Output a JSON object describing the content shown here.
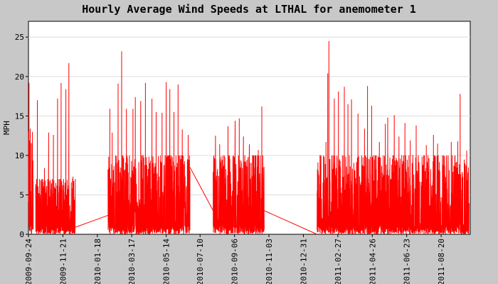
{
  "chart_data": {
    "type": "line",
    "title": "Hourly Average Wind Speeds at LTHAL for anemometer 1",
    "xlabel": "",
    "ylabel": "MPH",
    "xlim": [
      "2009-09-24",
      "2011-10-08"
    ],
    "ylim": [
      0,
      27
    ],
    "grid": true,
    "x_ticks": [
      "2009-09-24",
      "2009-11-21",
      "2010-01-18",
      "2010-03-17",
      "2010-05-14",
      "2010-07-10",
      "2010-09-06",
      "2010-11-03",
      "2010-12-31",
      "2011-02-27",
      "2011-04-26",
      "2011-06-23",
      "2011-08-20"
    ],
    "y_ticks": [
      0,
      5,
      10,
      15,
      20,
      25
    ],
    "colors": {
      "series": "#ff0000",
      "background": "#c8c8c8",
      "plot_area": "#ffffff",
      "grid": "#dddddd"
    },
    "series": [
      {
        "name": "",
        "segments": [
          {
            "start": "2009-09-24",
            "end": "2009-10-02",
            "typical_max": 13,
            "peaks": [
              [
                "2009-09-25",
                19.2
              ],
              [
                "2009-09-27",
                13.4
              ],
              [
                "2009-10-01",
                6.5
              ]
            ]
          },
          {
            "start": "2009-10-06",
            "end": "2009-12-12",
            "typical_max": 7,
            "peaks": [
              [
                "2009-10-09",
                17.0
              ],
              [
                "2009-10-21",
                8.4
              ],
              [
                "2009-10-28",
                12.9
              ],
              [
                "2009-11-05",
                12.6
              ],
              [
                "2009-11-12",
                17.2
              ],
              [
                "2009-11-18",
                19.2
              ],
              [
                "2009-11-26",
                18.4
              ],
              [
                "2009-12-01",
                21.7
              ],
              [
                "2009-12-08",
                7.3
              ]
            ]
          },
          {
            "start": "2010-02-05",
            "end": "2010-06-23",
            "typical_max": 10,
            "peaks": [
              [
                "2010-02-08",
                15.9
              ],
              [
                "2010-02-12",
                12.9
              ],
              [
                "2010-02-22",
                19.1
              ],
              [
                "2010-02-28",
                23.2
              ],
              [
                "2010-03-08",
                15.9
              ],
              [
                "2010-03-19",
                15.9
              ],
              [
                "2010-03-23",
                17.4
              ],
              [
                "2010-04-01",
                16.9
              ],
              [
                "2010-04-09",
                19.2
              ],
              [
                "2010-04-20",
                17.2
              ],
              [
                "2010-04-27",
                15.5
              ],
              [
                "2010-05-07",
                15.4
              ],
              [
                "2010-05-14",
                19.3
              ],
              [
                "2010-05-20",
                18.4
              ],
              [
                "2010-05-27",
                15.5
              ],
              [
                "2010-06-03",
                19.0
              ],
              [
                "2010-06-10",
                13.3
              ],
              [
                "2010-06-20",
                12.6
              ]
            ]
          },
          {
            "start": "2010-08-01",
            "end": "2010-10-26",
            "typical_max": 10,
            "peaks": [
              [
                "2010-08-05",
                12.5
              ],
              [
                "2010-08-12",
                11.4
              ],
              [
                "2010-08-26",
                13.7
              ],
              [
                "2010-09-07",
                14.4
              ],
              [
                "2010-09-14",
                14.7
              ],
              [
                "2010-09-21",
                12.4
              ],
              [
                "2010-10-01",
                11.4
              ],
              [
                "2010-10-16",
                10.7
              ],
              [
                "2010-10-22",
                16.2
              ]
            ]
          },
          {
            "start": "2011-01-23",
            "end": "2011-10-06",
            "typical_max": 10,
            "peaks": [
              [
                "2011-01-25",
                8.0
              ],
              [
                "2011-02-07",
                11.7
              ],
              [
                "2011-02-10",
                20.4
              ],
              [
                "2011-02-12",
                24.5
              ],
              [
                "2011-02-21",
                17.2
              ],
              [
                "2011-02-28",
                18.1
              ],
              [
                "2011-03-10",
                18.7
              ],
              [
                "2011-03-16",
                16.5
              ],
              [
                "2011-03-22",
                17.1
              ],
              [
                "2011-04-02",
                15.3
              ],
              [
                "2011-04-13",
                13.4
              ],
              [
                "2011-04-18",
                18.8
              ],
              [
                "2011-04-25",
                16.3
              ],
              [
                "2011-05-08",
                11.7
              ],
              [
                "2011-05-18",
                14.0
              ],
              [
                "2011-05-22",
                14.8
              ],
              [
                "2011-06-02",
                15.1
              ],
              [
                "2011-06-10",
                12.4
              ],
              [
                "2011-06-20",
                14.1
              ],
              [
                "2011-06-29",
                11.9
              ],
              [
                "2011-07-09",
                13.8
              ],
              [
                "2011-07-26",
                11.3
              ],
              [
                "2011-08-07",
                12.6
              ],
              [
                "2011-08-14",
                11.5
              ],
              [
                "2011-09-06",
                11.7
              ],
              [
                "2011-09-17",
                11.8
              ],
              [
                "2011-09-21",
                17.8
              ],
              [
                "2011-10-02",
                10.6
              ]
            ]
          }
        ],
        "gap_lines": [
          [
            [
              "2009-12-12",
              0.9
            ],
            [
              "2010-02-05",
              2.4
            ]
          ],
          [
            [
              "2010-06-23",
              8.5
            ],
            [
              "2010-08-01",
              3.0
            ]
          ],
          [
            [
              "2010-10-26",
              3.0
            ],
            [
              "2011-01-23",
              0.0
            ]
          ]
        ]
      }
    ]
  }
}
